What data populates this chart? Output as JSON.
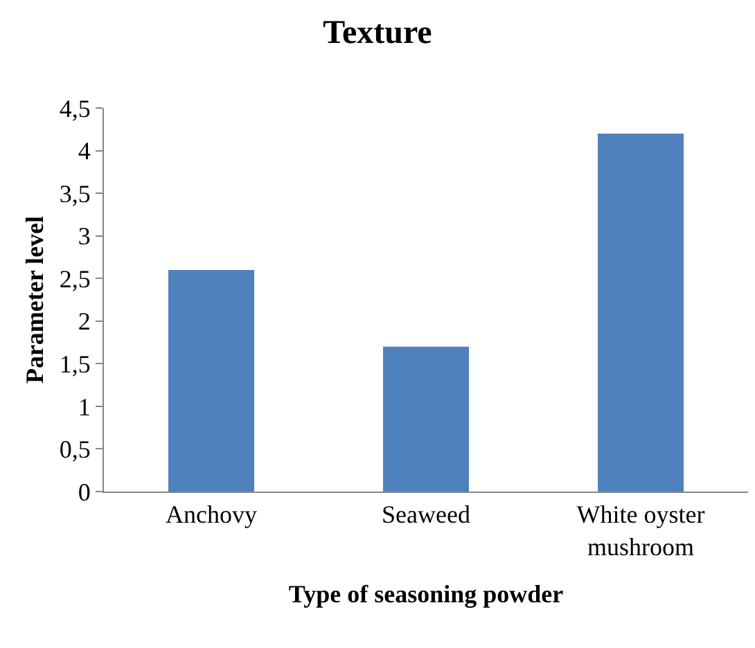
{
  "chart_data": {
    "type": "bar",
    "title": "Texture",
    "xlabel": "Type of seasoning powder",
    "ylabel": "Parameter level",
    "categories": [
      "Anchovy",
      "Seaweed",
      "White oyster mushroom"
    ],
    "values": [
      2.6,
      1.7,
      4.2
    ],
    "color": "#4f81bd",
    "ylim": [
      0,
      4.5
    ],
    "yticks": [
      0,
      {
        "value": 0.5,
        "label": "0,5"
      },
      1,
      {
        "value": 1.5,
        "label": "1,5"
      },
      2,
      {
        "value": 2.5,
        "label": "2,5"
      },
      3,
      {
        "value": 3.5,
        "label": "3,5"
      },
      4,
      {
        "value": 4.5,
        "label": "4,5"
      }
    ],
    "grid": false,
    "legend": false
  }
}
